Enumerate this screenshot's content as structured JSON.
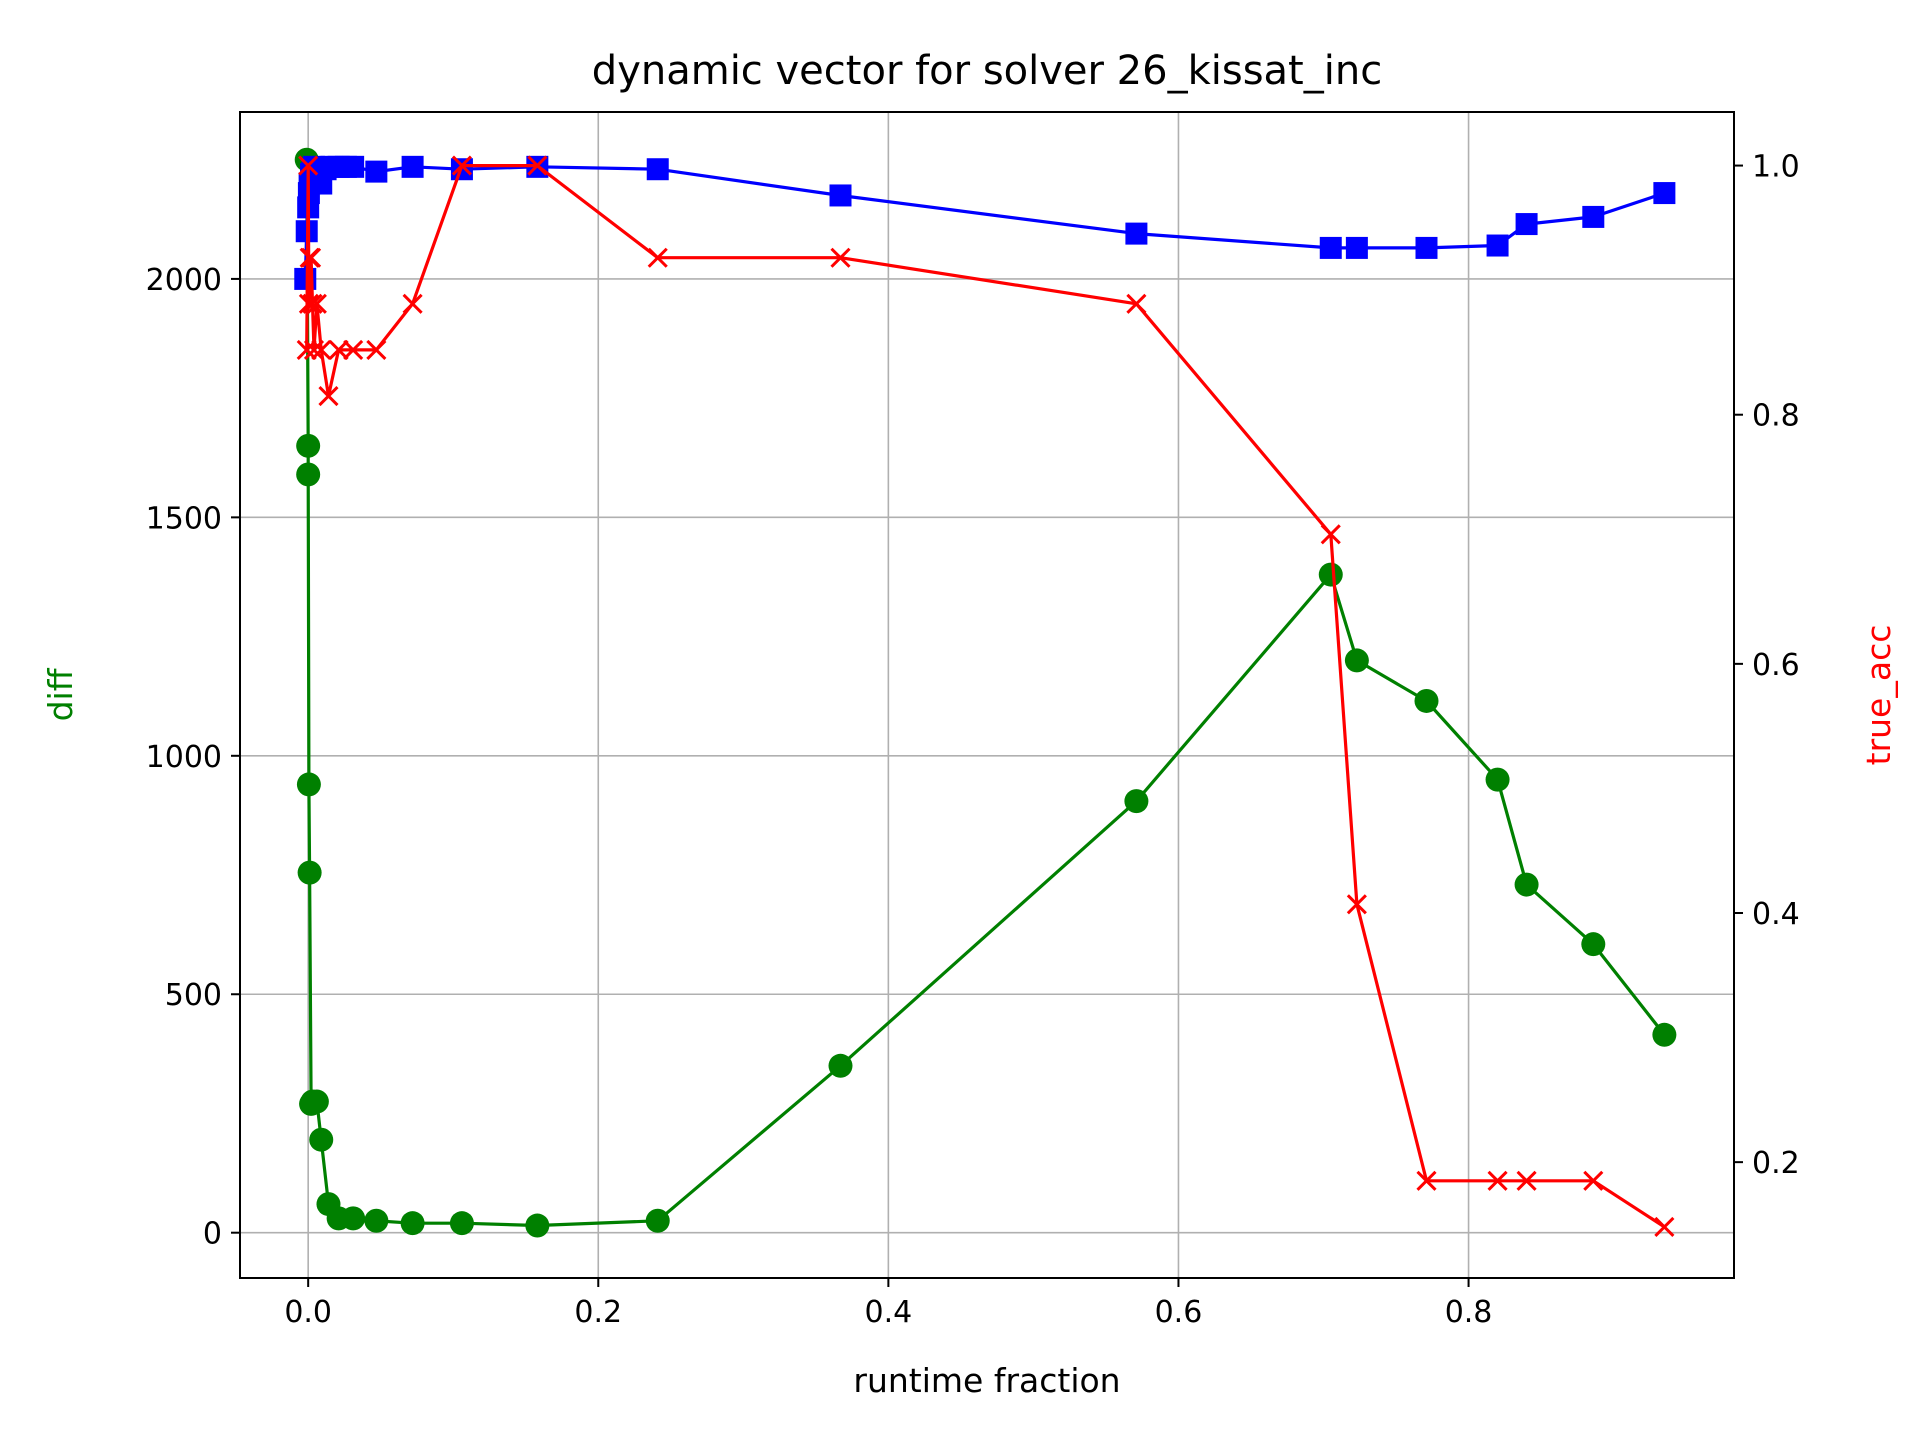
{
  "chart_data": {
    "type": "line",
    "title": "dynamic vector for solver 26_kissat_inc",
    "xlabel": "runtime fraction",
    "ylabel": "diff",
    "y2label": "true_acc",
    "xlim": [
      -0.047,
      0.983
    ],
    "ylim": [
      -95,
      2350
    ],
    "y2lim": [
      0.107,
      1.043
    ],
    "grid": true,
    "x_ticks": [
      "0.0",
      "0.2",
      "0.4",
      "0.6",
      "0.8"
    ],
    "x_tick_values": [
      0.0,
      0.2,
      0.4,
      0.6,
      0.8
    ],
    "y_ticks": [
      "0",
      "500",
      "1000",
      "1500",
      "2000"
    ],
    "y_tick_values": [
      0,
      500,
      1000,
      1500,
      2000
    ],
    "y2_ticks": [
      "0.2",
      "0.4",
      "0.6",
      "0.8",
      "1.0"
    ],
    "y2_tick_values": [
      0.2,
      0.4,
      0.6,
      0.8,
      1.0
    ],
    "colors": {
      "diff": "#008000",
      "true_acc": "#ff0000",
      "blue": "#0000ff"
    },
    "series": [
      {
        "color": "#008000",
        "marker": "circle",
        "axis": "left",
        "x": [
          -0.001,
          0.0,
          0.0,
          0.0005,
          0.001,
          0.002,
          0.003,
          0.006,
          0.009,
          0.014,
          0.021,
          0.031,
          0.047,
          0.072,
          0.106,
          0.158,
          0.241,
          0.367,
          0.571,
          0.705,
          0.723,
          0.771,
          0.82,
          0.84,
          0.886,
          0.935
        ],
        "y": [
          2250,
          1650,
          1590,
          940,
          755,
          270,
          275,
          275,
          195,
          60,
          30,
          30,
          25,
          20,
          20,
          15,
          25,
          350,
          905,
          1380,
          1200,
          1115,
          950,
          730,
          605,
          415
        ]
      },
      {
        "color": "#0000ff",
        "marker": "square",
        "axis": "left",
        "x": [
          -0.002,
          -0.001,
          0.0,
          0.0005,
          0.001,
          0.002,
          0.003,
          0.004,
          0.006,
          0.009,
          0.012,
          0.016,
          0.021,
          0.026,
          0.031,
          0.047,
          0.072,
          0.106,
          0.158,
          0.241,
          0.367,
          0.571,
          0.705,
          0.723,
          0.771,
          0.82,
          0.84,
          0.886,
          0.935
        ],
        "y": [
          2000,
          2100,
          2150,
          2180,
          2200,
          2220,
          2230,
          2235,
          2210,
          2200,
          2230,
          2235,
          2235,
          2235,
          2235,
          2225,
          2235,
          2230,
          2235,
          2230,
          2175,
          2095,
          2065,
          2065,
          2065,
          2070,
          2115,
          2130,
          2180
        ]
      },
      {
        "color": "#ff0000",
        "marker": "x",
        "axis": "right",
        "x": [
          -0.001,
          0.0,
          0.0005,
          0.001,
          0.002,
          0.003,
          0.004,
          0.006,
          0.009,
          0.014,
          0.021,
          0.031,
          0.047,
          0.072,
          0.106,
          0.158,
          0.241,
          0.367,
          0.571,
          0.705,
          0.723,
          0.771,
          0.82,
          0.84,
          0.886,
          0.935
        ],
        "y": [
          0.852,
          1.0,
          0.889,
          0.926,
          0.926,
          0.889,
          0.852,
          0.889,
          0.852,
          0.815,
          0.852,
          0.852,
          0.852,
          0.889,
          1.0,
          1.0,
          0.926,
          0.926,
          0.889,
          0.704,
          0.407,
          0.185,
          0.185,
          0.185,
          0.185,
          0.148
        ]
      }
    ]
  }
}
